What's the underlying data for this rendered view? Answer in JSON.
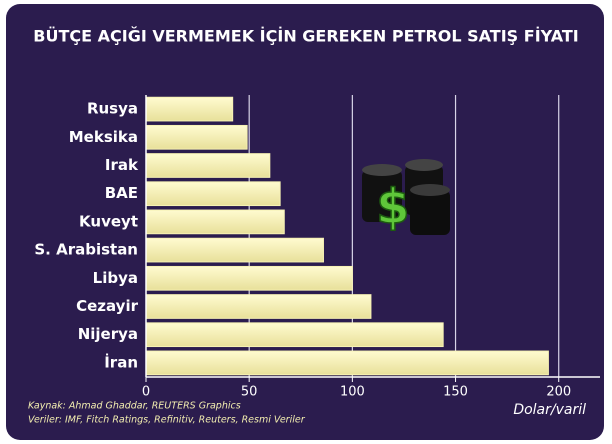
{
  "chart_data": {
    "type": "bar",
    "orientation": "horizontal",
    "title": "BÜTÇE AÇIĞI VERMEMEK İÇİN GEREKEN PETROL SATIŞ FİYATI",
    "categories": [
      "Rusya",
      "Meksika",
      "Irak",
      "BAE",
      "Kuveyt",
      "S. Arabistan",
      "Libya",
      "Cezayir",
      "Nijerya",
      "İran"
    ],
    "values": [
      42,
      49,
      60,
      65,
      67,
      86,
      100,
      109,
      144,
      195
    ],
    "color": "#f7f2b4",
    "xlim": [
      0,
      220
    ],
    "xticks": [
      0,
      50,
      100,
      150,
      200
    ],
    "grid": true,
    "x_label": "Dolar/varil",
    "sources": [
      "Kaynak: Ahmad Ghaddar, REUTERS Graphics",
      "Veriler: IMF, Fitch Ratings, Refinitiv, Reuters, Resmi Veriler"
    ]
  }
}
